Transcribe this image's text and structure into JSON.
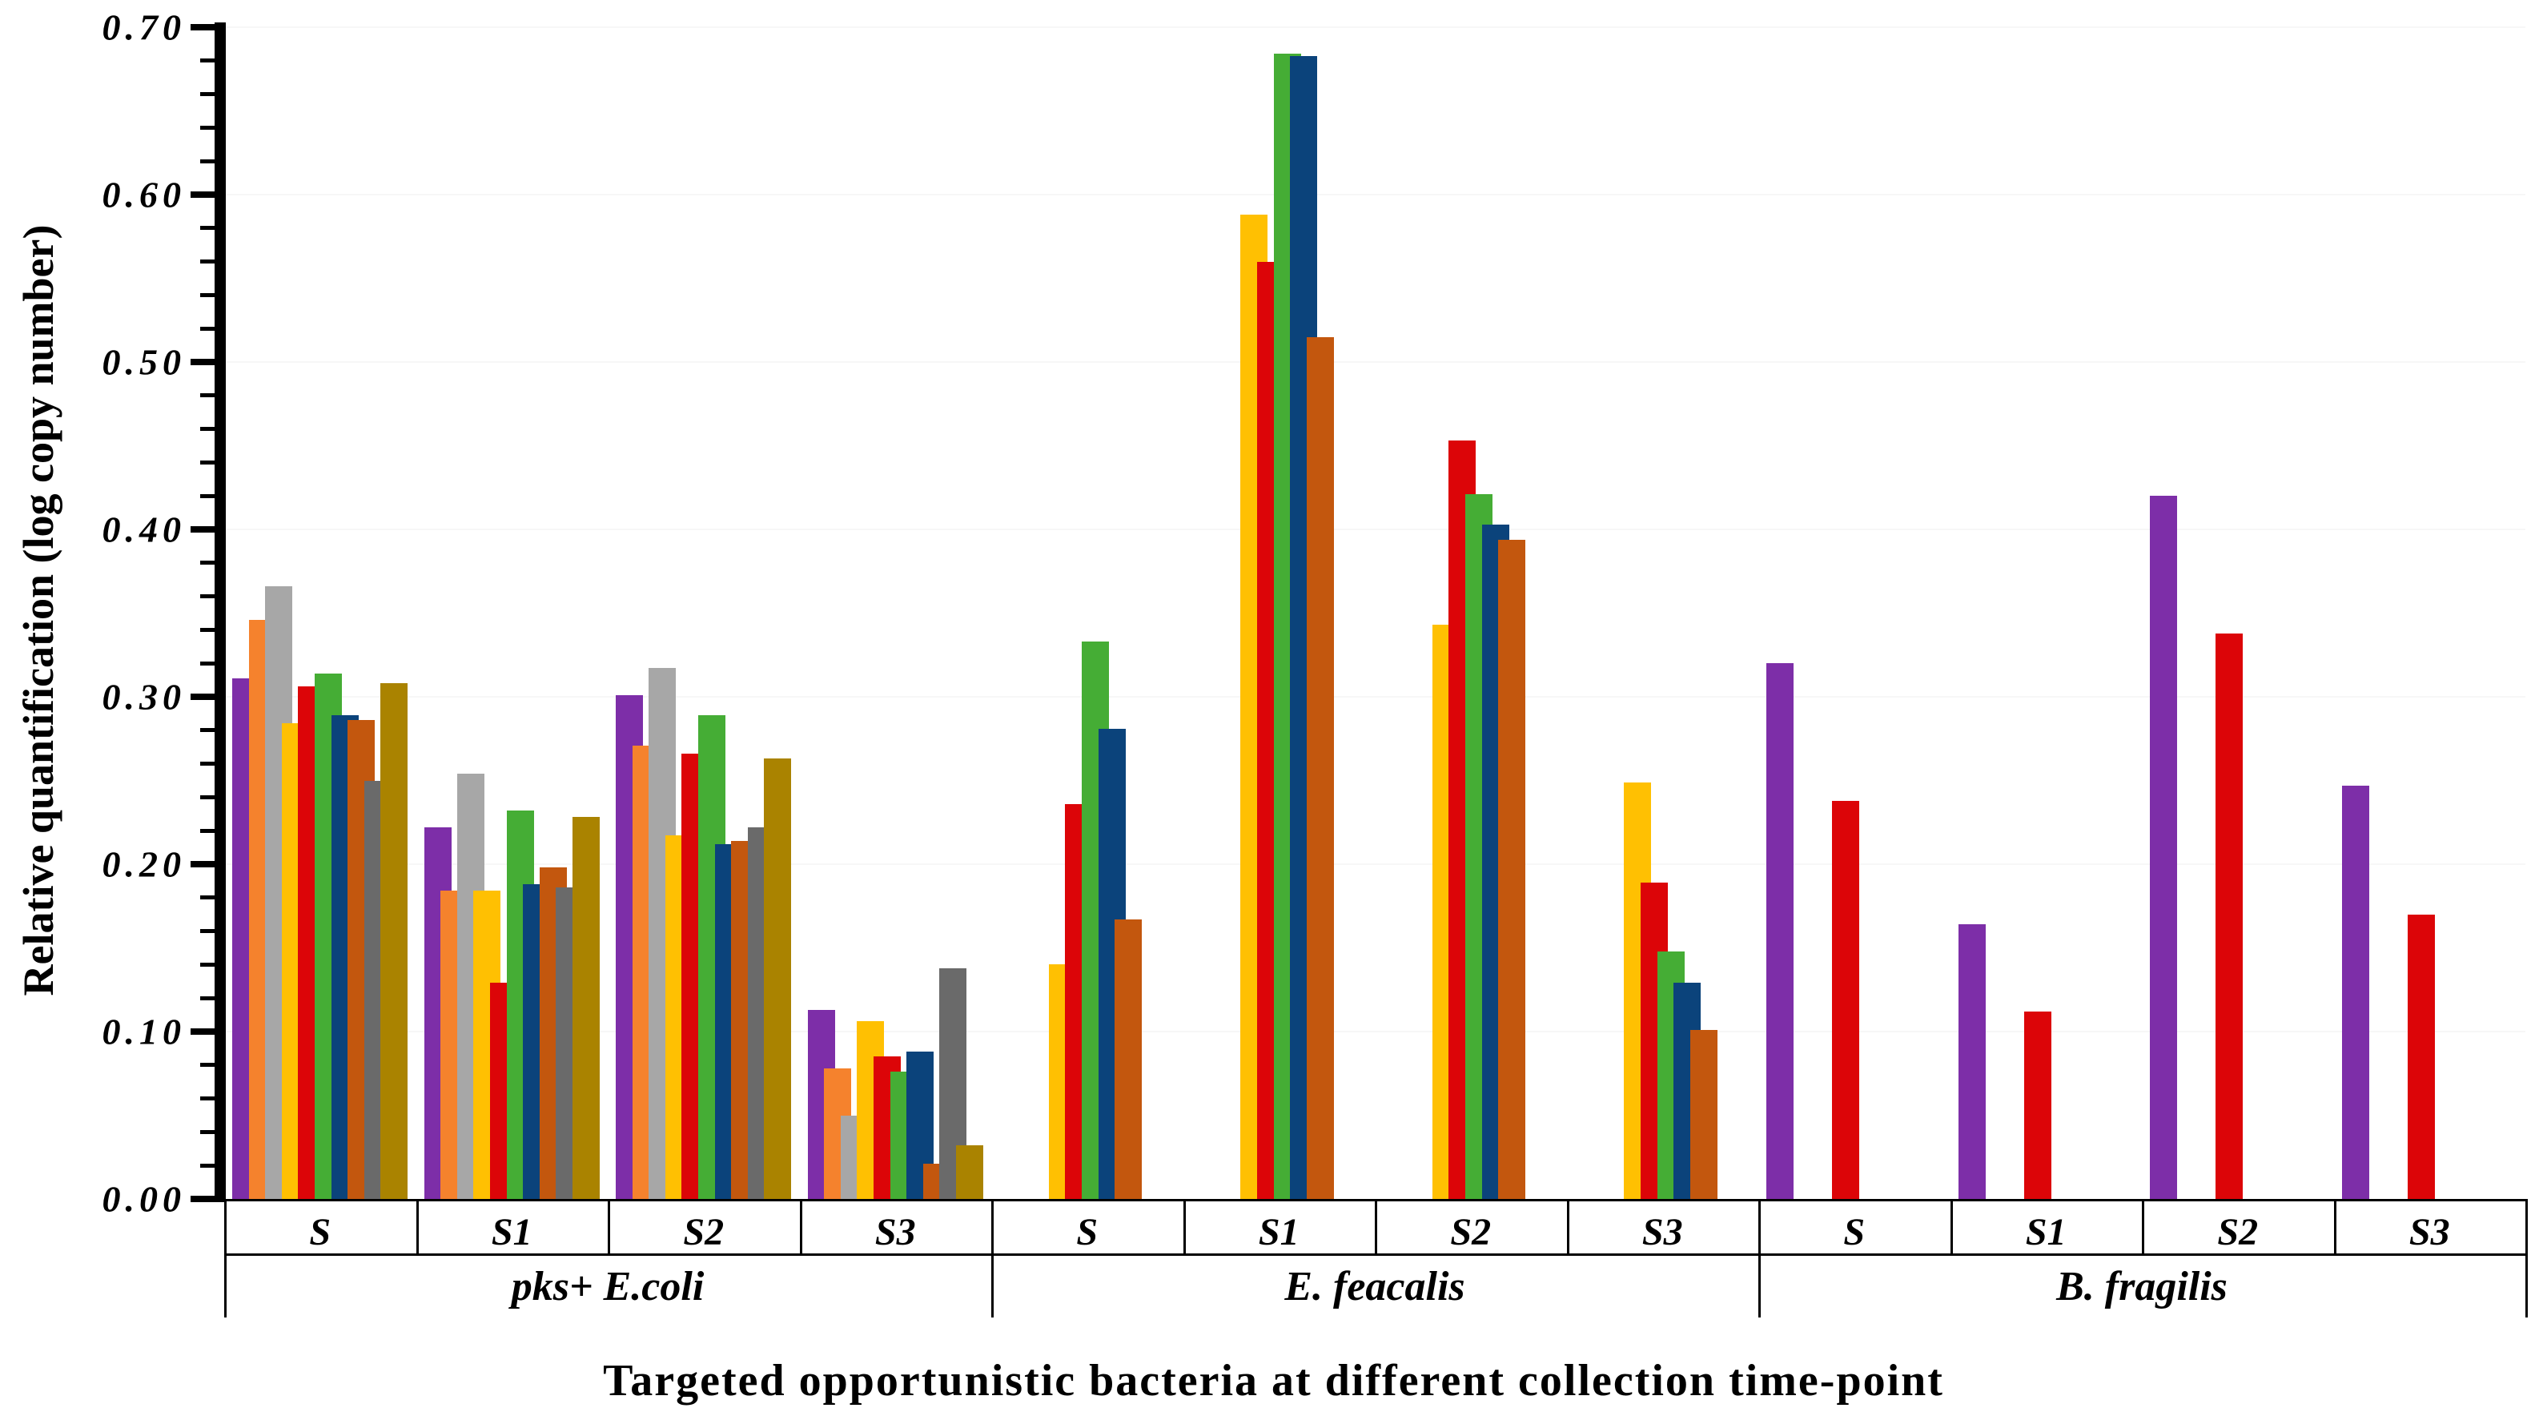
{
  "chart_data": {
    "type": "bar",
    "title": "",
    "xlabel": "Targeted opportunistic bacteria at different collection time-point",
    "ylabel": "Relative quantification (log copy number)",
    "ylim": [
      0.0,
      0.7
    ],
    "ytick_interval": 0.1,
    "yminor_tick_interval": 0.02,
    "ytick_labels": [
      "0.00",
      "0.10",
      "0.20",
      "0.30",
      "0.40",
      "0.50",
      "0.60",
      "0.70"
    ],
    "grid": "off",
    "legend": "none",
    "bar_style": "clustered, overlapping (later series drawn on top)",
    "groups": [
      {
        "label": "pks+ E.coli",
        "time_points": [
          "S",
          "S1",
          "S2",
          "S3"
        ]
      },
      {
        "label": "E. feacalis",
        "time_points": [
          "S",
          "S1",
          "S2",
          "S3"
        ]
      },
      {
        "label": "B. fragilis",
        "time_points": [
          "S",
          "S1",
          "S2",
          "S3"
        ]
      }
    ],
    "categories": [
      "S",
      "S1",
      "S2",
      "S3",
      "S",
      "S1",
      "S2",
      "S3",
      "S",
      "S1",
      "S2",
      "S3"
    ],
    "series": [
      {
        "name": "purple",
        "color": "#7D2EA8",
        "values": [
          0.311,
          0.222,
          0.301,
          0.113,
          0,
          0,
          0,
          0,
          0.32,
          0.164,
          0.42,
          0.247
        ]
      },
      {
        "name": "orange",
        "color": "#F5822D",
        "values": [
          0.346,
          0.184,
          0.271,
          0.078,
          0,
          0,
          0,
          0,
          0,
          0,
          0,
          0
        ]
      },
      {
        "name": "gray",
        "color": "#A7A7A7",
        "values": [
          0.366,
          0.254,
          0.317,
          0.05,
          0,
          0,
          0,
          0,
          0,
          0,
          0,
          0
        ]
      },
      {
        "name": "yellow",
        "color": "#FFC002",
        "values": [
          0.284,
          0.184,
          0.217,
          0.106,
          0.14,
          0.588,
          0.343,
          0.249,
          0,
          0,
          0,
          0
        ]
      },
      {
        "name": "red",
        "color": "#DC0508",
        "values": [
          0.306,
          0.129,
          0.266,
          0.085,
          0.236,
          0.56,
          0.453,
          0.189,
          0.238,
          0.112,
          0.338,
          0.17
        ]
      },
      {
        "name": "green",
        "color": "#45AD35",
        "values": [
          0.314,
          0.232,
          0.289,
          0.076,
          0.333,
          0.684,
          0.421,
          0.148,
          0,
          0,
          0,
          0
        ]
      },
      {
        "name": "navy",
        "color": "#0B437B",
        "values": [
          0.289,
          0.188,
          0.212,
          0.088,
          0.281,
          0.683,
          0.403,
          0.129,
          0,
          0,
          0,
          0
        ]
      },
      {
        "name": "brown",
        "color": "#C3570E",
        "values": [
          0.286,
          0.198,
          0.214,
          0.021,
          0.167,
          0.515,
          0.394,
          0.101,
          0,
          0,
          0,
          0
        ]
      },
      {
        "name": "dark-gray",
        "color": "#6A6A6A",
        "values": [
          0.25,
          0.186,
          0.222,
          0.138,
          0,
          0,
          0,
          0,
          0,
          0,
          0,
          0
        ]
      },
      {
        "name": "olive",
        "color": "#AA8300",
        "values": [
          0.308,
          0.228,
          0.263,
          0.032,
          0,
          0,
          0,
          0,
          0,
          0,
          0,
          0
        ]
      }
    ]
  }
}
